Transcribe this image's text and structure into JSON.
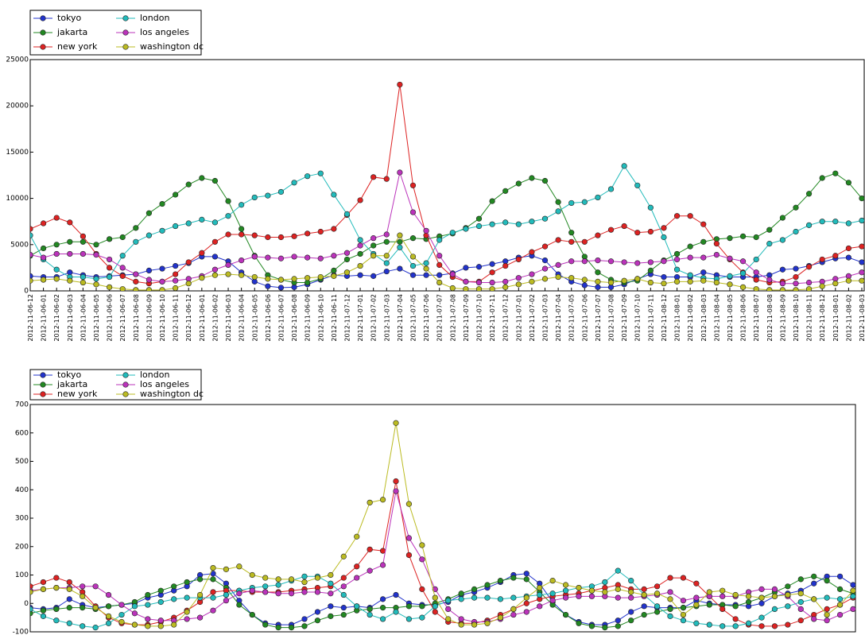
{
  "chart_data": [
    {
      "type": "line",
      "legend": "upper left",
      "ylim": [
        0,
        25000
      ],
      "yticks": [
        0,
        5000,
        10000,
        15000,
        20000,
        25000
      ],
      "categories": [
        "2012-11-06-12",
        "2012-11-06-01",
        "2012-11-06-02",
        "2012-11-06-03",
        "2012-11-06-04",
        "2012-11-06-05",
        "2012-11-06-06",
        "2012-11-06-07",
        "2012-11-06-08",
        "2012-11-06-09",
        "2012-11-06-10",
        "2012-11-06-11",
        "2012-11-06-12",
        "2012-11-06-01",
        "2012-11-06-02",
        "2012-11-06-03",
        "2012-11-06-04",
        "2012-11-06-05",
        "2012-11-06-06",
        "2012-11-06-07",
        "2012-11-06-08",
        "2012-11-06-09",
        "2012-11-06-10",
        "2012-11-06-11",
        "2012-11-07-12",
        "2012-11-07-01",
        "2012-11-07-02",
        "2012-11-07-03",
        "2012-11-07-04",
        "2012-11-07-05",
        "2012-11-07-06",
        "2012-11-07-07",
        "2012-11-07-08",
        "2012-11-07-09",
        "2012-11-07-10",
        "2012-11-07-11",
        "2012-11-07-12",
        "2012-11-07-01",
        "2012-11-07-02",
        "2012-11-07-03",
        "2012-11-07-04",
        "2012-11-07-05",
        "2012-11-07-06",
        "2012-11-07-07",
        "2012-11-07-08",
        "2012-11-07-09",
        "2012-11-07-10",
        "2012-11-07-11",
        "2012-11-08-12",
        "2012-11-08-01",
        "2012-11-08-02",
        "2012-11-08-03",
        "2012-11-08-04",
        "2012-11-08-05",
        "2012-11-08-06",
        "2012-11-08-07",
        "2012-11-08-08",
        "2012-11-08-09",
        "2012-11-08-10",
        "2012-11-08-11",
        "2012-11-08-12",
        "2012-11-08-01",
        "2012-11-08-02",
        "2012-11-08-03"
      ],
      "series": [
        {
          "name": "tokyo",
          "color": "#2233cc",
          "values": [
            1600,
            1500,
            1500,
            2000,
            1700,
            1500,
            1600,
            1700,
            1800,
            2200,
            2400,
            2700,
            3000,
            3700,
            3700,
            3200,
            2000,
            1000,
            500,
            350,
            400,
            700,
            1200,
            1700,
            1600,
            1700,
            1600,
            2100,
            2400,
            1700,
            1700,
            1700,
            1900,
            2500,
            2600,
            2900,
            3200,
            3600,
            3800,
            3300,
            1800,
            1000,
            600,
            400,
            400,
            700,
            1300,
            1800,
            1500,
            1500,
            1500,
            2000,
            1700,
            1500,
            1500,
            1500,
            1700,
            2300,
            2400,
            2700,
            3100,
            3500,
            3600,
            3100
          ]
        },
        {
          "name": "jakarta",
          "color": "#228822",
          "values": [
            3800,
            4600,
            5000,
            5300,
            5300,
            5000,
            5600,
            5800,
            6800,
            8400,
            9400,
            10400,
            11500,
            12200,
            11900,
            9700,
            6700,
            3800,
            1700,
            1200,
            900,
            900,
            1300,
            2200,
            3400,
            4000,
            4900,
            5300,
            5300,
            5700,
            5600,
            5900,
            6200,
            6800,
            7800,
            9700,
            10800,
            11600,
            12200,
            11900,
            9600,
            6300,
            3700,
            2000,
            1200,
            900,
            1100,
            2200,
            3300,
            4000,
            4800,
            5300,
            5600,
            5700,
            5900,
            5800,
            6600,
            7900,
            9000,
            10500,
            12200,
            12700,
            11700,
            10000
          ]
        },
        {
          "name": "new york",
          "color": "#dd2222",
          "values": [
            6700,
            7300,
            7900,
            7400,
            5900,
            4000,
            2500,
            1600,
            1000,
            800,
            1000,
            1800,
            3100,
            4100,
            5300,
            6100,
            6100,
            6000,
            5800,
            5800,
            5900,
            6200,
            6400,
            6700,
            8200,
            9800,
            12300,
            12100,
            22300,
            11400,
            6000,
            2800,
            1500,
            1000,
            1000,
            2000,
            2700,
            3400,
            4200,
            4800,
            5500,
            5300,
            5300,
            6000,
            6600,
            7000,
            6300,
            6400,
            6800,
            8100,
            8100,
            7200,
            5100,
            3400,
            2000,
            1200,
            900,
            1000,
            1500,
            2600,
            3400,
            3800,
            4600,
            4800
          ]
        },
        {
          "name": "london",
          "color": "#22bbbb",
          "values": [
            6000,
            3400,
            2300,
            1500,
            1500,
            1300,
            1500,
            3800,
            5300,
            6000,
            6500,
            7000,
            7300,
            7700,
            7400,
            8100,
            9300,
            10100,
            10300,
            10700,
            11700,
            12400,
            12700,
            10400,
            8300,
            5500,
            4000,
            3000,
            4700,
            2700,
            3000,
            5500,
            6300,
            6700,
            7000,
            7200,
            7400,
            7200,
            7500,
            7800,
            8600,
            9500,
            9600,
            10100,
            11000,
            13500,
            11400,
            9000,
            5800,
            2300,
            1700,
            1400,
            1300,
            1600,
            1900,
            3400,
            5100,
            5500,
            6400,
            7100,
            7500,
            7500,
            7300,
            7600
          ]
        },
        {
          "name": "los angeles",
          "color": "#bb33bb",
          "values": [
            3900,
            3600,
            4000,
            4000,
            4000,
            3900,
            3400,
            2500,
            1800,
            1200,
            1000,
            1100,
            1300,
            1600,
            2300,
            2800,
            3300,
            3700,
            3600,
            3500,
            3700,
            3600,
            3500,
            3800,
            4100,
            4900,
            5700,
            6100,
            12800,
            8500,
            6500,
            3800,
            1800,
            1000,
            900,
            900,
            1000,
            1400,
            1800,
            2400,
            2800,
            3200,
            3200,
            3300,
            3200,
            3100,
            3000,
            3100,
            3200,
            3400,
            3600,
            3600,
            3900,
            3500,
            3200,
            2000,
            1200,
            800,
            800,
            900,
            1000,
            1300,
            1600,
            2000
          ]
        },
        {
          "name": "washington dc",
          "color": "#bbbb22",
          "values": [
            1100,
            1200,
            1300,
            1100,
            900,
            700,
            400,
            200,
            100,
            100,
            100,
            300,
            800,
            1400,
            1700,
            1800,
            1700,
            1500,
            1300,
            1200,
            1300,
            1400,
            1500,
            1600,
            2000,
            2700,
            3800,
            3800,
            6000,
            3700,
            2400,
            900,
            300,
            200,
            200,
            200,
            400,
            700,
            1000,
            1300,
            1500,
            1400,
            1200,
            1000,
            900,
            1100,
            1300,
            900,
            800,
            1000,
            1000,
            1100,
            900,
            700,
            400,
            200,
            100,
            100,
            100,
            200,
            500,
            800,
            1100,
            1100
          ]
        }
      ]
    },
    {
      "type": "line",
      "legend": "upper left",
      "ylim": [
        -100,
        700
      ],
      "yticks": [
        -100,
        0,
        100,
        200,
        300,
        400,
        500,
        600,
        700
      ],
      "series": [
        {
          "name": "tokyo",
          "color": "#2233cc",
          "values": [
            -15,
            -20,
            -15,
            15,
            -5,
            -15,
            -10,
            -5,
            0,
            20,
            30,
            45,
            60,
            100,
            105,
            70,
            10,
            -40,
            -70,
            -75,
            -75,
            -55,
            -30,
            -10,
            -15,
            -10,
            -15,
            15,
            30,
            0,
            -5,
            -5,
            5,
            30,
            40,
            55,
            75,
            100,
            105,
            70,
            5,
            -40,
            -65,
            -75,
            -75,
            -60,
            -30,
            -10,
            -15,
            -15,
            -15,
            10,
            0,
            -5,
            -5,
            -10,
            0,
            25,
            35,
            45,
            70,
            95,
            95,
            65
          ]
        },
        {
          "name": "jakarta",
          "color": "#228822",
          "values": [
            -35,
            -25,
            -20,
            -15,
            -15,
            -20,
            -10,
            -5,
            5,
            30,
            45,
            60,
            75,
            85,
            85,
            55,
            -5,
            -40,
            -75,
            -85,
            -85,
            -80,
            -60,
            -45,
            -40,
            -25,
            -20,
            -15,
            -15,
            -10,
            -10,
            0,
            15,
            35,
            50,
            65,
            80,
            90,
            85,
            40,
            -5,
            -40,
            -70,
            -80,
            -85,
            -80,
            -60,
            -40,
            -30,
            -20,
            -15,
            -10,
            -5,
            -5,
            -10,
            5,
            20,
            40,
            60,
            85,
            95,
            80,
            50,
            35
          ]
        },
        {
          "name": "new york",
          "color": "#dd2222",
          "values": [
            60,
            75,
            90,
            75,
            40,
            -10,
            -50,
            -70,
            -75,
            -75,
            -65,
            -50,
            -25,
            5,
            40,
            45,
            45,
            40,
            40,
            40,
            45,
            50,
            55,
            60,
            90,
            130,
            190,
            185,
            430,
            170,
            50,
            -30,
            -65,
            -70,
            -70,
            -60,
            -40,
            -20,
            0,
            15,
            25,
            30,
            35,
            45,
            55,
            65,
            50,
            50,
            60,
            90,
            90,
            70,
            25,
            -20,
            -55,
            -75,
            -80,
            -80,
            -75,
            -60,
            -40,
            -20,
            -5,
            20
          ]
        },
        {
          "name": "london",
          "color": "#22bbbb",
          "values": [
            -20,
            -45,
            -60,
            -70,
            -80,
            -85,
            -70,
            -40,
            -10,
            -5,
            5,
            15,
            20,
            20,
            20,
            30,
            45,
            55,
            60,
            65,
            80,
            95,
            95,
            70,
            30,
            -10,
            -40,
            -55,
            -30,
            -55,
            -50,
            -10,
            10,
            15,
            20,
            20,
            15,
            20,
            25,
            30,
            35,
            45,
            55,
            60,
            75,
            115,
            80,
            30,
            -10,
            -45,
            -60,
            -70,
            -75,
            -80,
            -80,
            -70,
            -50,
            -20,
            -10,
            5,
            15,
            20,
            15,
            25
          ]
        },
        {
          "name": "los angeles",
          "color": "#bb33bb",
          "values": [
            45,
            50,
            55,
            55,
            60,
            60,
            30,
            -5,
            -35,
            -55,
            -60,
            -60,
            -55,
            -50,
            -25,
            10,
            35,
            45,
            40,
            35,
            35,
            40,
            40,
            35,
            60,
            90,
            115,
            135,
            395,
            230,
            155,
            50,
            -20,
            -55,
            -65,
            -65,
            -55,
            -40,
            -30,
            -10,
            10,
            20,
            25,
            25,
            25,
            20,
            20,
            25,
            30,
            40,
            10,
            20,
            25,
            25,
            25,
            40,
            50,
            50,
            25,
            -20,
            -55,
            -60,
            -40,
            -20
          ]
        },
        {
          "name": "washington dc",
          "color": "#bbbb22",
          "values": [
            40,
            50,
            55,
            50,
            25,
            -15,
            -45,
            -65,
            -75,
            -80,
            -80,
            -75,
            -30,
            30,
            125,
            120,
            130,
            100,
            90,
            85,
            85,
            75,
            90,
            100,
            165,
            235,
            355,
            365,
            635,
            350,
            205,
            20,
            -55,
            -75,
            -75,
            -70,
            -50,
            -20,
            20,
            55,
            80,
            65,
            55,
            45,
            40,
            50,
            40,
            30,
            35,
            15,
            -40,
            -5,
            40,
            45,
            30,
            25,
            20,
            25,
            30,
            35,
            15,
            -40,
            -5,
            45
          ]
        }
      ]
    }
  ]
}
